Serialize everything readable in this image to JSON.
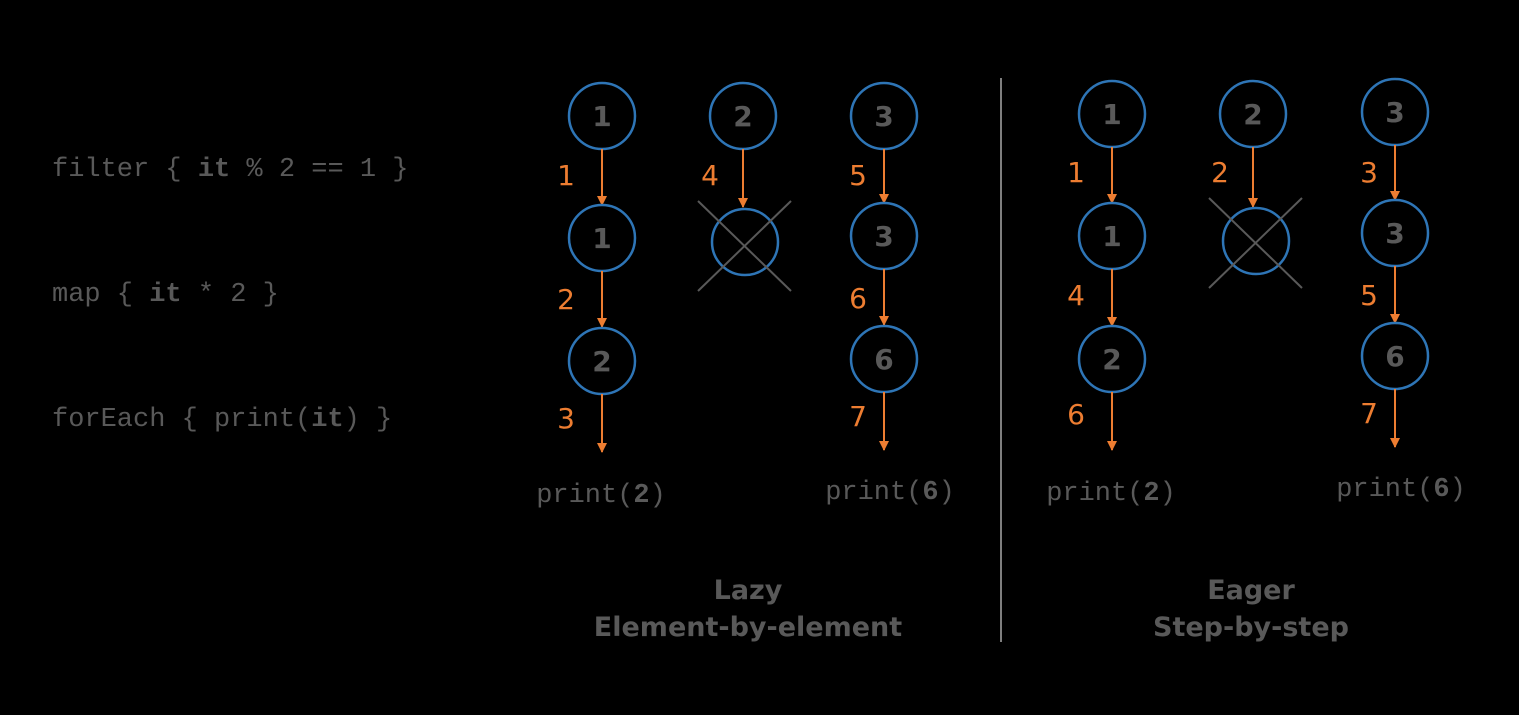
{
  "colors": {
    "background": "#000000",
    "node_stroke": "#2E75B6",
    "arrow": "#ED7D31",
    "step_label": "#ED7D31",
    "text": "#595959",
    "divider": "#7F7F7F"
  },
  "code": {
    "filter": {
      "pre": "filter { ",
      "kw": "it",
      "post": " % 2 == 1 }"
    },
    "map": {
      "pre": "map { ",
      "kw": "it",
      "post": " * 2 }"
    },
    "foreach": {
      "pre": "forEach { print(",
      "kw": "it",
      "post": ") }"
    }
  },
  "lazy": {
    "caption_line1": "Lazy",
    "caption_line2": "Element-by-element",
    "col1": {
      "input": "1",
      "after_filter": "1",
      "after_map": "2",
      "steps": [
        "1",
        "2",
        "3"
      ],
      "out_pre": "print(",
      "out_val": "2",
      "out_post": ")"
    },
    "col2": {
      "input": "2",
      "steps": [
        "4"
      ]
    },
    "col3": {
      "input": "3",
      "after_filter": "3",
      "after_map": "6",
      "steps": [
        "5",
        "6",
        "7"
      ],
      "out_pre": "print(",
      "out_val": "6",
      "out_post": ")"
    }
  },
  "eager": {
    "caption_line1": "Eager",
    "caption_line2": "Step-by-step",
    "col1": {
      "input": "1",
      "after_filter": "1",
      "after_map": "2",
      "steps": [
        "1",
        "4",
        "6"
      ],
      "out_pre": "print(",
      "out_val": "2",
      "out_post": ")"
    },
    "col2": {
      "input": "2",
      "steps": [
        "2"
      ]
    },
    "col3": {
      "input": "3",
      "after_filter": "3",
      "after_map": "6",
      "steps": [
        "3",
        "5",
        "7"
      ],
      "out_pre": "print(",
      "out_val": "6",
      "out_post": ")"
    }
  }
}
